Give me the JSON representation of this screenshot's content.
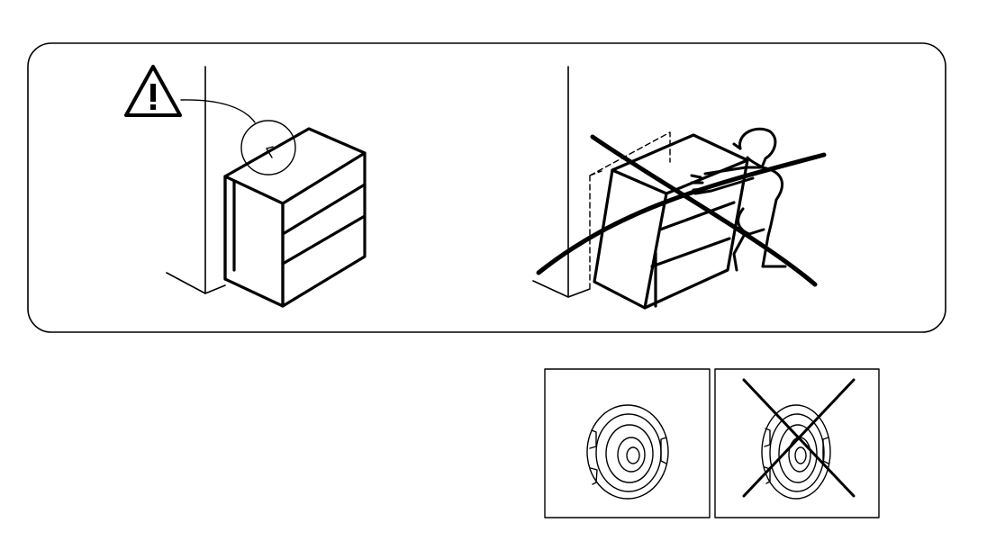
{
  "page": {
    "background": "#ffffff",
    "ink": "#000000"
  },
  "warning_panel": {
    "left_scene": {
      "icon": "warning-triangle-icon",
      "subject": "bookshelf-anchored-to-wall"
    },
    "right_scene": {
      "icon": "prohibited-cross-icon",
      "subject": "person-climbing-tipping-bookshelf"
    }
  },
  "hardware_panels": [
    {
      "icon": "wall-anchor-disc-icon",
      "status": "correct"
    },
    {
      "icon": "wall-anchor-disc-icon",
      "status": "incorrect",
      "overlay": "x-cross-icon"
    }
  ]
}
